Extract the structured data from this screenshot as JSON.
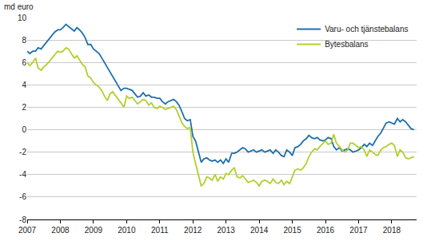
{
  "chart_data": {
    "type": "line",
    "y_label": "md euro",
    "x": [
      2007.0,
      2007.08,
      2007.17,
      2007.25,
      2007.33,
      2007.42,
      2007.5,
      2007.58,
      2007.67,
      2007.75,
      2007.83,
      2007.92,
      2008.0,
      2008.08,
      2008.17,
      2008.25,
      2008.33,
      2008.42,
      2008.5,
      2008.58,
      2008.67,
      2008.75,
      2008.83,
      2008.92,
      2009.0,
      2009.08,
      2009.17,
      2009.25,
      2009.33,
      2009.42,
      2009.5,
      2009.58,
      2009.67,
      2009.75,
      2009.83,
      2009.92,
      2010.0,
      2010.08,
      2010.17,
      2010.25,
      2010.33,
      2010.42,
      2010.5,
      2010.58,
      2010.67,
      2010.75,
      2010.83,
      2010.92,
      2011.0,
      2011.08,
      2011.17,
      2011.25,
      2011.33,
      2011.42,
      2011.5,
      2011.58,
      2011.67,
      2011.75,
      2011.83,
      2011.92,
      2012.0,
      2012.08,
      2012.17,
      2012.25,
      2012.33,
      2012.42,
      2012.5,
      2012.58,
      2012.67,
      2012.75,
      2012.83,
      2012.92,
      2013.0,
      2013.08,
      2013.17,
      2013.25,
      2013.33,
      2013.42,
      2013.5,
      2013.58,
      2013.67,
      2013.75,
      2013.83,
      2013.92,
      2014.0,
      2014.08,
      2014.17,
      2014.25,
      2014.33,
      2014.42,
      2014.5,
      2014.58,
      2014.67,
      2014.75,
      2014.83,
      2014.92,
      2015.0,
      2015.08,
      2015.17,
      2015.25,
      2015.33,
      2015.42,
      2015.5,
      2015.58,
      2015.67,
      2015.75,
      2015.83,
      2015.92,
      2016.0,
      2016.08,
      2016.17,
      2016.25,
      2016.33,
      2016.42,
      2016.5,
      2016.58,
      2016.67,
      2016.75,
      2016.83,
      2016.92,
      2017.0,
      2017.08,
      2017.17,
      2017.25,
      2017.33,
      2017.42,
      2017.5,
      2017.58,
      2017.67,
      2017.75,
      2017.83,
      2017.92,
      2018.0,
      2018.08,
      2018.17,
      2018.25,
      2018.33,
      2018.42,
      2018.5,
      2018.58,
      2018.67
    ],
    "series": [
      {
        "name": "Varu- och tjänstebalans",
        "color": "#1f70ad",
        "values": [
          7.0,
          6.8,
          7.0,
          7.0,
          7.3,
          7.2,
          7.5,
          7.8,
          8.1,
          8.4,
          8.7,
          8.9,
          8.9,
          9.1,
          9.4,
          9.2,
          9.0,
          8.8,
          9.1,
          8.9,
          8.6,
          8.2,
          7.6,
          7.6,
          7.2,
          7.0,
          6.8,
          6.4,
          6.0,
          5.6,
          5.2,
          4.8,
          4.4,
          4.0,
          3.5,
          3.7,
          3.7,
          3.6,
          3.5,
          3.2,
          2.9,
          3.0,
          3.3,
          3.0,
          3.1,
          2.9,
          2.9,
          2.8,
          2.8,
          2.5,
          2.3,
          2.5,
          2.6,
          2.7,
          2.5,
          2.2,
          1.6,
          1.0,
          0.8,
          0.9,
          -0.6,
          -1.0,
          -2.0,
          -2.9,
          -2.6,
          -2.5,
          -2.7,
          -2.8,
          -2.7,
          -2.9,
          -2.7,
          -3.0,
          -2.6,
          -2.9,
          -2.1,
          -2.1,
          -2.0,
          -1.8,
          -1.6,
          -1.7,
          -2.0,
          -1.9,
          -1.8,
          -2.0,
          -1.9,
          -1.8,
          -2.0,
          -1.9,
          -1.8,
          -2.1,
          -1.8,
          -2.0,
          -2.3,
          -2.4,
          -1.8,
          -2.0,
          -2.3,
          -1.6,
          -1.5,
          -1.3,
          -1.0,
          -0.8,
          -0.5,
          -0.7,
          -0.8,
          -0.7,
          -0.9,
          -1.0,
          -0.9,
          -0.7,
          -0.8,
          -1.5,
          -1.8,
          -1.6,
          -1.9,
          -1.8,
          -1.7,
          -1.8,
          -2.0,
          -1.9,
          -1.8,
          -1.6,
          -1.3,
          -1.5,
          -1.2,
          -1.4,
          -1.0,
          -0.6,
          -0.3,
          0.2,
          0.6,
          0.7,
          0.6,
          0.5,
          1.0,
          0.7,
          0.9,
          0.7,
          0.4,
          0.1,
          0.0
        ]
      },
      {
        "name": "Bytesbalans",
        "color": "#b3cf2f",
        "values": [
          6.0,
          5.7,
          6.0,
          6.4,
          5.5,
          5.3,
          5.6,
          5.8,
          6.1,
          6.4,
          6.7,
          7.0,
          6.9,
          7.0,
          7.3,
          7.2,
          6.8,
          6.4,
          6.6,
          6.2,
          5.8,
          5.6,
          4.8,
          4.6,
          4.2,
          4.0,
          3.8,
          3.5,
          3.0,
          2.6,
          3.2,
          3.4,
          3.0,
          2.7,
          2.4,
          2.0,
          3.0,
          2.8,
          2.9,
          2.6,
          2.3,
          2.5,
          2.7,
          2.6,
          2.2,
          2.4,
          2.0,
          1.9,
          2.1,
          2.0,
          1.8,
          1.9,
          2.0,
          2.1,
          1.8,
          1.2,
          0.6,
          0.3,
          0.1,
          0.2,
          -2.0,
          -3.0,
          -4.0,
          -5.0,
          -4.8,
          -4.2,
          -4.3,
          -4.5,
          -4.0,
          -4.6,
          -4.2,
          -4.4,
          -3.9,
          -4.0,
          -3.6,
          -3.4,
          -4.2,
          -4.3,
          -4.1,
          -4.4,
          -4.7,
          -4.6,
          -4.5,
          -4.7,
          -5.0,
          -4.6,
          -4.5,
          -4.6,
          -4.8,
          -4.4,
          -4.7,
          -4.8,
          -4.5,
          -4.9,
          -4.6,
          -4.8,
          -4.2,
          -3.6,
          -3.5,
          -3.6,
          -3.4,
          -3.0,
          -2.4,
          -2.0,
          -1.7,
          -1.8,
          -1.5,
          -1.2,
          -1.0,
          -1.3,
          -1.2,
          -0.4,
          -1.2,
          -1.5,
          -1.8,
          -2.0,
          -1.8,
          -1.2,
          -1.2,
          -1.4,
          -1.6,
          -1.5,
          -1.8,
          -2.4,
          -1.8,
          -2.0,
          -2.2,
          -2.3,
          -1.8,
          -1.6,
          -1.5,
          -1.3,
          -1.2,
          -1.4,
          -2.4,
          -1.8,
          -2.0,
          -2.5,
          -2.6,
          -2.5,
          -2.4
        ]
      }
    ],
    "xlim": [
      2007,
      2018.75
    ],
    "ylim": [
      -8,
      10
    ],
    "xticks": [
      2007,
      2008,
      2009,
      2010,
      2011,
      2012,
      2013,
      2014,
      2015,
      2016,
      2017,
      2018
    ],
    "yticks": [
      -8,
      -6,
      -4,
      -2,
      0,
      2,
      4,
      6,
      8,
      10
    ],
    "grid": true,
    "legend": "top right"
  }
}
